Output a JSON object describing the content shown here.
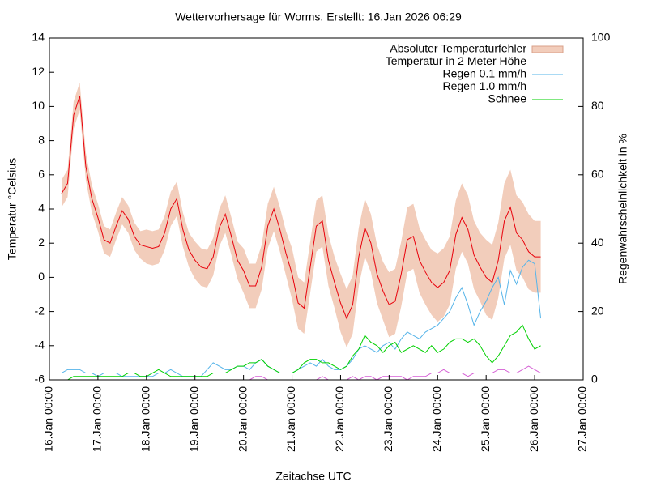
{
  "chart_data": {
    "type": "line",
    "title": "Wettervorhersage für Worms. Erstellt: 16.Jan 2026 06:29",
    "xlabel": "Zeitachse UTC",
    "ylabel": "Temperatur °Celsius",
    "y2label": "Regenwahrscheinlichkeit in %",
    "xlim": [
      "16.Jan 00:00",
      "27.Jan 00:00"
    ],
    "xticks": [
      "16.Jan 00:00",
      "17.Jan 00:00",
      "18.Jan 00:00",
      "19.Jan 00:00",
      "20.Jan 00:00",
      "21.Jan 00:00",
      "22.Jan 00:00",
      "23.Jan 00:00",
      "24.Jan 00:00",
      "25.Jan 00:00",
      "26.Jan 00:00",
      "27.Jan 00:00"
    ],
    "ylim": [
      -6,
      14
    ],
    "yticks": [
      -6,
      -4,
      -2,
      0,
      2,
      4,
      6,
      8,
      10,
      12,
      14
    ],
    "y2lim": [
      0,
      100
    ],
    "y2ticks": [
      0,
      20,
      40,
      60,
      80,
      100
    ],
    "legend": "top-right",
    "x": [
      "16.Jan 06:00",
      "16.Jan 09:00",
      "16.Jan 12:00",
      "16.Jan 15:00",
      "16.Jan 18:00",
      "16.Jan 21:00",
      "17.Jan 00:00",
      "17.Jan 03:00",
      "17.Jan 06:00",
      "17.Jan 09:00",
      "17.Jan 12:00",
      "17.Jan 15:00",
      "17.Jan 18:00",
      "17.Jan 21:00",
      "18.Jan 00:00",
      "18.Jan 03:00",
      "18.Jan 06:00",
      "18.Jan 09:00",
      "18.Jan 12:00",
      "18.Jan 15:00",
      "18.Jan 18:00",
      "18.Jan 21:00",
      "19.Jan 00:00",
      "19.Jan 03:00",
      "19.Jan 06:00",
      "19.Jan 09:00",
      "19.Jan 12:00",
      "19.Jan 15:00",
      "19.Jan 18:00",
      "19.Jan 21:00",
      "20.Jan 00:00",
      "20.Jan 03:00",
      "20.Jan 06:00",
      "20.Jan 09:00",
      "20.Jan 12:00",
      "20.Jan 15:00",
      "20.Jan 18:00",
      "20.Jan 21:00",
      "21.Jan 00:00",
      "21.Jan 03:00",
      "21.Jan 06:00",
      "21.Jan 09:00",
      "21.Jan 12:00",
      "21.Jan 15:00",
      "21.Jan 18:00",
      "21.Jan 21:00",
      "22.Jan 00:00",
      "22.Jan 03:00",
      "22.Jan 06:00",
      "22.Jan 09:00",
      "22.Jan 12:00",
      "22.Jan 15:00",
      "22.Jan 18:00",
      "22.Jan 21:00",
      "23.Jan 00:00",
      "23.Jan 03:00",
      "23.Jan 06:00",
      "23.Jan 09:00",
      "23.Jan 12:00",
      "23.Jan 15:00",
      "23.Jan 18:00",
      "23.Jan 21:00",
      "24.Jan 00:00",
      "24.Jan 03:00",
      "24.Jan 06:00",
      "24.Jan 09:00",
      "24.Jan 12:00",
      "24.Jan 15:00",
      "24.Jan 18:00",
      "24.Jan 21:00",
      "25.Jan 00:00",
      "25.Jan 03:00",
      "25.Jan 06:00",
      "25.Jan 09:00",
      "25.Jan 12:00",
      "25.Jan 15:00",
      "25.Jan 18:00",
      "25.Jan 21:00",
      "26.Jan 00:00",
      "26.Jan 03:00"
    ],
    "series": [
      {
        "name": "Absoluter Temperaturfehler",
        "color": "#f2cdbb",
        "values": [
          0.8,
          0.8,
          0.8,
          0.8,
          0.8,
          0.8,
          0.8,
          0.8,
          0.8,
          0.8,
          0.8,
          0.8,
          0.8,
          0.8,
          1,
          1,
          1,
          1,
          1,
          1,
          1,
          1,
          1.1,
          1.1,
          1.1,
          1.1,
          1.1,
          1.1,
          1.1,
          1.1,
          1.3,
          1.3,
          1.3,
          1.3,
          1.3,
          1.3,
          1.3,
          1.3,
          1.5,
          1.5,
          1.5,
          1.5,
          1.5,
          1.5,
          1.5,
          1.5,
          1.7,
          1.7,
          1.7,
          1.7,
          1.7,
          1.7,
          1.7,
          1.7,
          1.9,
          1.9,
          1.9,
          1.9,
          1.9,
          1.9,
          1.9,
          1.9,
          2,
          2,
          2,
          2,
          2,
          2,
          2,
          2,
          2.2,
          2.2,
          2.2,
          2.2,
          2.2,
          2.2,
          2.2,
          2.2,
          2.1,
          2.1
        ]
      },
      {
        "name": "Temperatur in 2 Meter Höhe",
        "color": "#e8000b",
        "values": [
          4.9,
          5.5,
          9.5,
          10.6,
          6.5,
          4.6,
          3.5,
          2.2,
          2.0,
          3.0,
          3.9,
          3.4,
          2.4,
          1.9,
          1.8,
          1.7,
          1.8,
          2.6,
          4.0,
          4.6,
          2.8,
          1.6,
          1.0,
          0.6,
          0.5,
          1.2,
          2.9,
          3.7,
          2.4,
          1.0,
          0.4,
          -0.5,
          -0.5,
          0.6,
          3.0,
          4.0,
          2.8,
          1.4,
          0.2,
          -1.5,
          -1.8,
          0.6,
          3.0,
          3.3,
          1.0,
          -0.3,
          -1.5,
          -2.4,
          -1.6,
          1.2,
          2.9,
          2.0,
          0.2,
          -0.8,
          -1.6,
          -1.4,
          0.2,
          2.2,
          2.4,
          1.0,
          0.3,
          -0.3,
          -0.6,
          -0.3,
          0.4,
          2.5,
          3.5,
          2.8,
          1.3,
          0.6,
          0.0,
          -0.3,
          1.0,
          3.3,
          4.1,
          2.6,
          2.2,
          1.5,
          1.2,
          1.2
        ]
      },
      {
        "name": "Regen 0.1 mm/h",
        "color": "#56b4e9",
        "axis": "y2",
        "values": [
          2,
          3,
          3,
          3,
          2,
          2,
          1,
          2,
          2,
          2,
          1,
          1,
          1,
          1,
          1,
          1,
          2,
          2,
          3,
          2,
          1,
          1,
          1,
          1,
          3,
          5,
          4,
          3,
          3,
          4,
          4,
          3,
          5,
          6,
          4,
          3,
          2,
          2,
          2,
          3,
          4,
          5,
          4,
          6,
          4,
          3,
          3,
          4,
          6,
          9,
          10,
          9,
          8,
          10,
          11,
          9,
          12,
          14,
          13,
          12,
          14,
          15,
          16,
          18,
          20,
          24,
          27,
          22,
          16,
          20,
          23,
          27,
          30,
          22,
          32,
          28,
          33,
          35,
          34,
          18
        ]
      },
      {
        "name": "Regen 1.0 mm/h",
        "color": "#d55fd5",
        "axis": "y2",
        "values": [
          0,
          0,
          0,
          0,
          0,
          0,
          0,
          0,
          0,
          0,
          0,
          0,
          0,
          0,
          0,
          0,
          0,
          0,
          0,
          0,
          0,
          0,
          0,
          0,
          0,
          0,
          0,
          0,
          0,
          0,
          0,
          0,
          1,
          1,
          0,
          0,
          0,
          0,
          0,
          0,
          0,
          0,
          0,
          1,
          0,
          0,
          0,
          0,
          1,
          0,
          1,
          1,
          0,
          1,
          1,
          1,
          1,
          0,
          1,
          1,
          1,
          2,
          2,
          3,
          2,
          2,
          2,
          1,
          2,
          2,
          2,
          2,
          3,
          3,
          2,
          2,
          3,
          4,
          3,
          2
        ]
      },
      {
        "name": "Schnee",
        "color": "#00d000",
        "axis": "y2",
        "values": [
          0,
          0,
          1,
          1,
          1,
          1,
          1,
          1,
          1,
          1,
          1,
          2,
          2,
          1,
          1,
          2,
          3,
          2,
          1,
          1,
          1,
          1,
          1,
          1,
          1,
          2,
          2,
          2,
          3,
          4,
          4,
          5,
          5,
          6,
          4,
          3,
          2,
          2,
          2,
          3,
          5,
          6,
          6,
          5,
          5,
          4,
          3,
          4,
          7,
          9,
          13,
          11,
          10,
          8,
          10,
          11,
          8,
          9,
          10,
          9,
          8,
          10,
          8,
          9,
          11,
          12,
          12,
          11,
          12,
          10,
          7,
          5,
          7,
          10,
          13,
          14,
          16,
          12,
          9,
          10
        ]
      }
    ]
  }
}
